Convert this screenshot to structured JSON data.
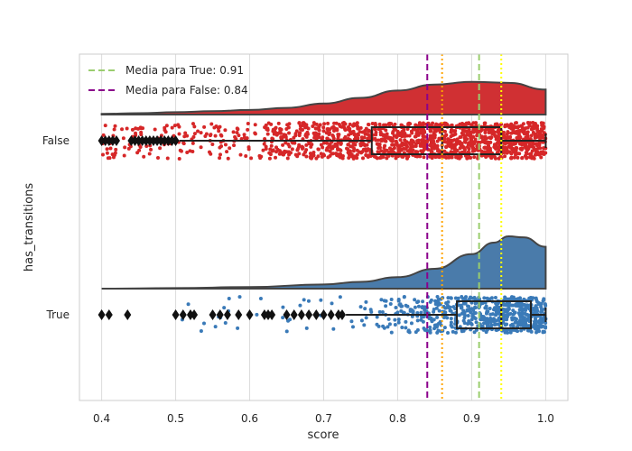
{
  "chart_data": {
    "type": "raincloud",
    "xlabel": "score",
    "ylabel": "has_transitions",
    "xlim": [
      0.37,
      1.03
    ],
    "xticks": [
      "0.4",
      "0.5",
      "0.6",
      "0.7",
      "0.8",
      "0.9",
      "1.0"
    ],
    "xtick_values": [
      0.4,
      0.5,
      0.6,
      0.7,
      0.8,
      0.9,
      1.0
    ],
    "grid": "vertical",
    "legend": {
      "placement": "top-left",
      "entries": [
        {
          "label": "Media para True: 0.91",
          "color": "#9ACD6E",
          "style": "dashed"
        },
        {
          "label": "Media para False: 0.84",
          "color": "#8B008B",
          "style": "dashed"
        }
      ]
    },
    "groups": [
      {
        "name": "False",
        "color": "#D62728",
        "cloud_color": "#D03033",
        "box": {
          "q1": 0.765,
          "median": 0.86,
          "q3": 0.94,
          "whisker_low": 0.505,
          "whisker_high": 1.0
        },
        "strip_range": [
          0.4,
          1.0
        ],
        "outliers": [
          0.4,
          0.405,
          0.41,
          0.415,
          0.42,
          0.44,
          0.445,
          0.45,
          0.455,
          0.46,
          0.465,
          0.47,
          0.475,
          0.48,
          0.485,
          0.49,
          0.495,
          0.5
        ],
        "density": [
          [
            0.4,
            0.02
          ],
          [
            0.45,
            0.04
          ],
          [
            0.5,
            0.07
          ],
          [
            0.55,
            0.1
          ],
          [
            0.6,
            0.14
          ],
          [
            0.65,
            0.2
          ],
          [
            0.7,
            0.33
          ],
          [
            0.75,
            0.5
          ],
          [
            0.8,
            0.72
          ],
          [
            0.85,
            0.9
          ],
          [
            0.9,
            0.98
          ],
          [
            0.95,
            0.95
          ],
          [
            1.0,
            0.75
          ]
        ],
        "mean": 0.84
      },
      {
        "name": "True",
        "color": "#3A7AB8",
        "cloud_color": "#4A7BAA",
        "box": {
          "q1": 0.88,
          "median": 0.94,
          "q3": 0.98,
          "whisker_low": 0.73,
          "whisker_high": 1.0
        },
        "strip_range": [
          0.4,
          1.0
        ],
        "outliers": [
          0.4,
          0.41,
          0.435,
          0.5,
          0.51,
          0.52,
          0.525,
          0.55,
          0.56,
          0.57,
          0.585,
          0.6,
          0.62,
          0.625,
          0.63,
          0.65,
          0.66,
          0.67,
          0.68,
          0.69,
          0.7,
          0.71,
          0.72,
          0.725
        ],
        "density": [
          [
            0.4,
            0.0
          ],
          [
            0.5,
            0.01
          ],
          [
            0.6,
            0.03
          ],
          [
            0.7,
            0.08
          ],
          [
            0.75,
            0.13
          ],
          [
            0.8,
            0.22
          ],
          [
            0.85,
            0.38
          ],
          [
            0.9,
            0.66
          ],
          [
            0.93,
            0.88
          ],
          [
            0.95,
            1.0
          ],
          [
            0.97,
            0.98
          ],
          [
            1.0,
            0.8
          ]
        ],
        "mean": 0.91
      }
    ],
    "reference_lines": [
      {
        "value": 0.84,
        "color": "#8B008B",
        "style": "dashed"
      },
      {
        "value": 0.91,
        "color": "#9ACD6E",
        "style": "dashed"
      },
      {
        "value": 0.86,
        "color": "#FFA500",
        "style": "dotted"
      },
      {
        "value": 0.94,
        "color": "#FFFF00",
        "style": "dotted"
      }
    ]
  }
}
